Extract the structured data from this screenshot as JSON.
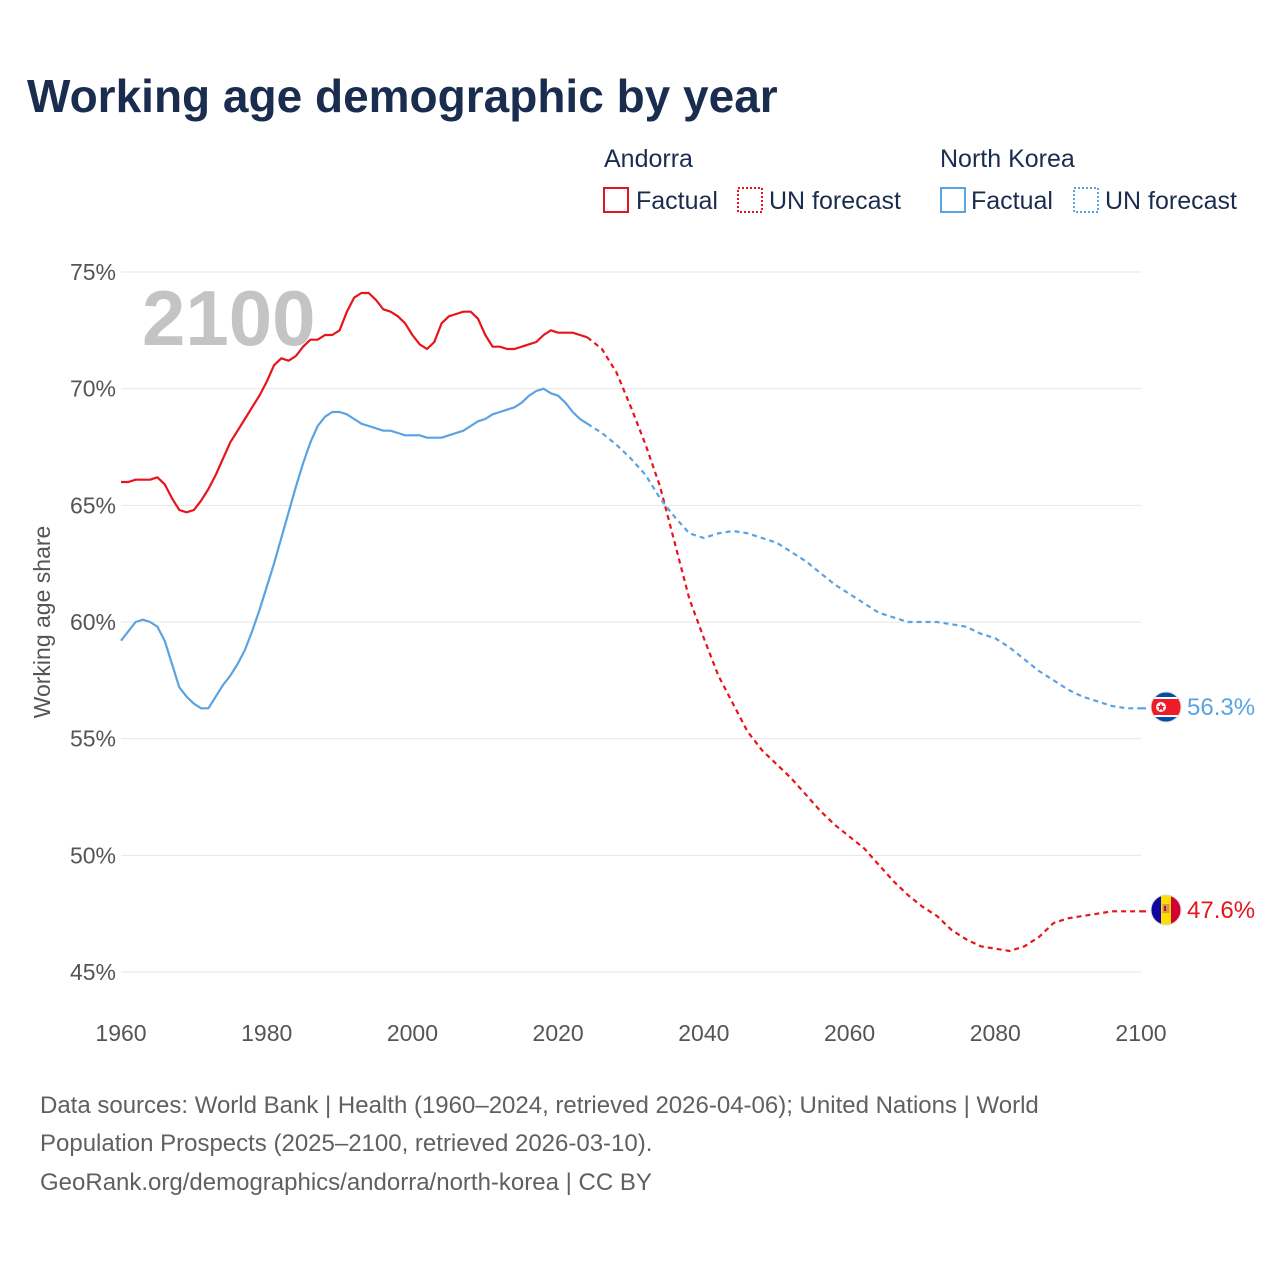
{
  "colors": {
    "andorra": "#e8141c",
    "north_korea": "#5aa3e3",
    "title": "#1b2d4f",
    "grid": "#e6e6e6"
  },
  "chart_data": {
    "type": "line",
    "title": "Working age demographic by year",
    "ylabel": "Working age share",
    "xlabel": "",
    "xlim": [
      1960,
      2100
    ],
    "ylim": [
      45,
      75
    ],
    "x_ticks": [
      1960,
      1980,
      2000,
      2020,
      2040,
      2060,
      2080,
      2100
    ],
    "x_tick_labels": [
      "1960",
      "1980",
      "2000",
      "2020",
      "2040",
      "2060",
      "2080",
      "2100"
    ],
    "y_ticks": [
      45,
      50,
      55,
      60,
      65,
      70,
      75
    ],
    "y_tick_labels": [
      "45%",
      "50%",
      "55%",
      "60%",
      "65%",
      "70%",
      "75%"
    ],
    "current_year": "2100",
    "legend": {
      "groups": [
        {
          "name": "Andorra",
          "items": [
            "Factual",
            "UN forecast"
          ]
        },
        {
          "name": "North Korea",
          "items": [
            "Factual",
            "UN forecast"
          ]
        }
      ]
    },
    "series": [
      {
        "name": "Andorra",
        "key": "andorra",
        "end_label": "47.6%",
        "flag": "andorra-flag-icon",
        "factual": {
          "x": [
            1960,
            1961,
            1962,
            1963,
            1964,
            1965,
            1966,
            1967,
            1968,
            1969,
            1970,
            1971,
            1972,
            1973,
            1974,
            1975,
            1976,
            1977,
            1978,
            1979,
            1980,
            1981,
            1982,
            1983,
            1984,
            1985,
            1986,
            1987,
            1988,
            1989,
            1990,
            1991,
            1992,
            1993,
            1994,
            1995,
            1996,
            1997,
            1998,
            1999,
            2000,
            2001,
            2002,
            2003,
            2004,
            2005,
            2006,
            2007,
            2008,
            2009,
            2010,
            2011,
            2012,
            2013,
            2014,
            2015,
            2016,
            2017,
            2018,
            2019,
            2020,
            2021,
            2022,
            2023,
            2024
          ],
          "y": [
            66.0,
            66.0,
            66.1,
            66.1,
            66.1,
            66.2,
            65.9,
            65.3,
            64.8,
            64.7,
            64.8,
            65.2,
            65.7,
            66.3,
            67.0,
            67.7,
            68.2,
            68.7,
            69.2,
            69.7,
            70.3,
            71.0,
            71.3,
            71.2,
            71.4,
            71.8,
            72.1,
            72.1,
            72.3,
            72.3,
            72.5,
            73.3,
            73.9,
            74.1,
            74.1,
            73.8,
            73.4,
            73.3,
            73.1,
            72.8,
            72.3,
            71.9,
            71.7,
            72.0,
            72.8,
            73.1,
            73.2,
            73.3,
            73.3,
            73.0,
            72.3,
            71.8,
            71.8,
            71.7,
            71.7,
            71.8,
            71.9,
            72.0,
            72.3,
            72.5,
            72.4,
            72.4,
            72.4,
            72.3,
            72.2
          ]
        },
        "forecast": {
          "x": [
            2024,
            2026,
            2028,
            2030,
            2032,
            2034,
            2036,
            2038,
            2040,
            2042,
            2044,
            2046,
            2048,
            2050,
            2052,
            2054,
            2056,
            2058,
            2060,
            2062,
            2064,
            2066,
            2068,
            2070,
            2072,
            2074,
            2076,
            2078,
            2080,
            2082,
            2084,
            2086,
            2088,
            2090,
            2092,
            2094,
            2096,
            2098,
            2100
          ],
          "y": [
            72.2,
            71.7,
            70.7,
            69.2,
            67.6,
            65.8,
            63.4,
            61.0,
            59.3,
            57.7,
            56.5,
            55.3,
            54.5,
            53.9,
            53.3,
            52.6,
            51.9,
            51.3,
            50.8,
            50.3,
            49.6,
            48.9,
            48.3,
            47.8,
            47.4,
            46.8,
            46.4,
            46.1,
            46.0,
            45.9,
            46.1,
            46.5,
            47.1,
            47.3,
            47.4,
            47.5,
            47.6,
            47.6,
            47.6
          ]
        }
      },
      {
        "name": "North Korea",
        "key": "north_korea",
        "end_label": "56.3%",
        "flag": "north-korea-flag-icon",
        "factual": {
          "x": [
            1960,
            1961,
            1962,
            1963,
            1964,
            1965,
            1966,
            1967,
            1968,
            1969,
            1970,
            1971,
            1972,
            1973,
            1974,
            1975,
            1976,
            1977,
            1978,
            1979,
            1980,
            1981,
            1982,
            1983,
            1984,
            1985,
            1986,
            1987,
            1988,
            1989,
            1990,
            1991,
            1992,
            1993,
            1994,
            1995,
            1996,
            1997,
            1998,
            1999,
            2000,
            2001,
            2002,
            2003,
            2004,
            2005,
            2006,
            2007,
            2008,
            2009,
            2010,
            2011,
            2012,
            2013,
            2014,
            2015,
            2016,
            2017,
            2018,
            2019,
            2020,
            2021,
            2022,
            2023,
            2024
          ],
          "y": [
            59.2,
            59.6,
            60.0,
            60.1,
            60.0,
            59.8,
            59.2,
            58.2,
            57.2,
            56.8,
            56.5,
            56.3,
            56.3,
            56.8,
            57.3,
            57.7,
            58.2,
            58.8,
            59.6,
            60.5,
            61.5,
            62.5,
            63.6,
            64.7,
            65.8,
            66.8,
            67.7,
            68.4,
            68.8,
            69.0,
            69.0,
            68.9,
            68.7,
            68.5,
            68.4,
            68.3,
            68.2,
            68.2,
            68.1,
            68.0,
            68.0,
            68.0,
            67.9,
            67.9,
            67.9,
            68.0,
            68.1,
            68.2,
            68.4,
            68.6,
            68.7,
            68.9,
            69.0,
            69.1,
            69.2,
            69.4,
            69.7,
            69.9,
            70.0,
            69.8,
            69.7,
            69.4,
            69.0,
            68.7,
            68.5
          ]
        },
        "forecast": {
          "x": [
            2024,
            2026,
            2028,
            2030,
            2032,
            2034,
            2036,
            2038,
            2040,
            2042,
            2044,
            2046,
            2048,
            2050,
            2052,
            2054,
            2056,
            2058,
            2060,
            2062,
            2064,
            2066,
            2068,
            2070,
            2072,
            2074,
            2076,
            2078,
            2080,
            2082,
            2084,
            2086,
            2088,
            2090,
            2092,
            2094,
            2096,
            2098,
            2100
          ],
          "y": [
            68.5,
            68.1,
            67.6,
            67.0,
            66.3,
            65.3,
            64.5,
            63.8,
            63.6,
            63.8,
            63.9,
            63.8,
            63.6,
            63.4,
            63.0,
            62.6,
            62.1,
            61.6,
            61.2,
            60.8,
            60.4,
            60.2,
            60.0,
            60.0,
            60.0,
            59.9,
            59.8,
            59.5,
            59.3,
            58.9,
            58.4,
            57.9,
            57.5,
            57.1,
            56.8,
            56.6,
            56.4,
            56.3,
            56.3
          ]
        }
      }
    ]
  },
  "source": {
    "line1": "Data sources: World Bank | Health (1960–2024, retrieved 2026-04-06); United Nations | World",
    "line2": "Population Prospects (2025–2100, retrieved 2026-03-10).",
    "line3": "GeoRank.org/demographics/andorra/north-korea | CC BY"
  }
}
